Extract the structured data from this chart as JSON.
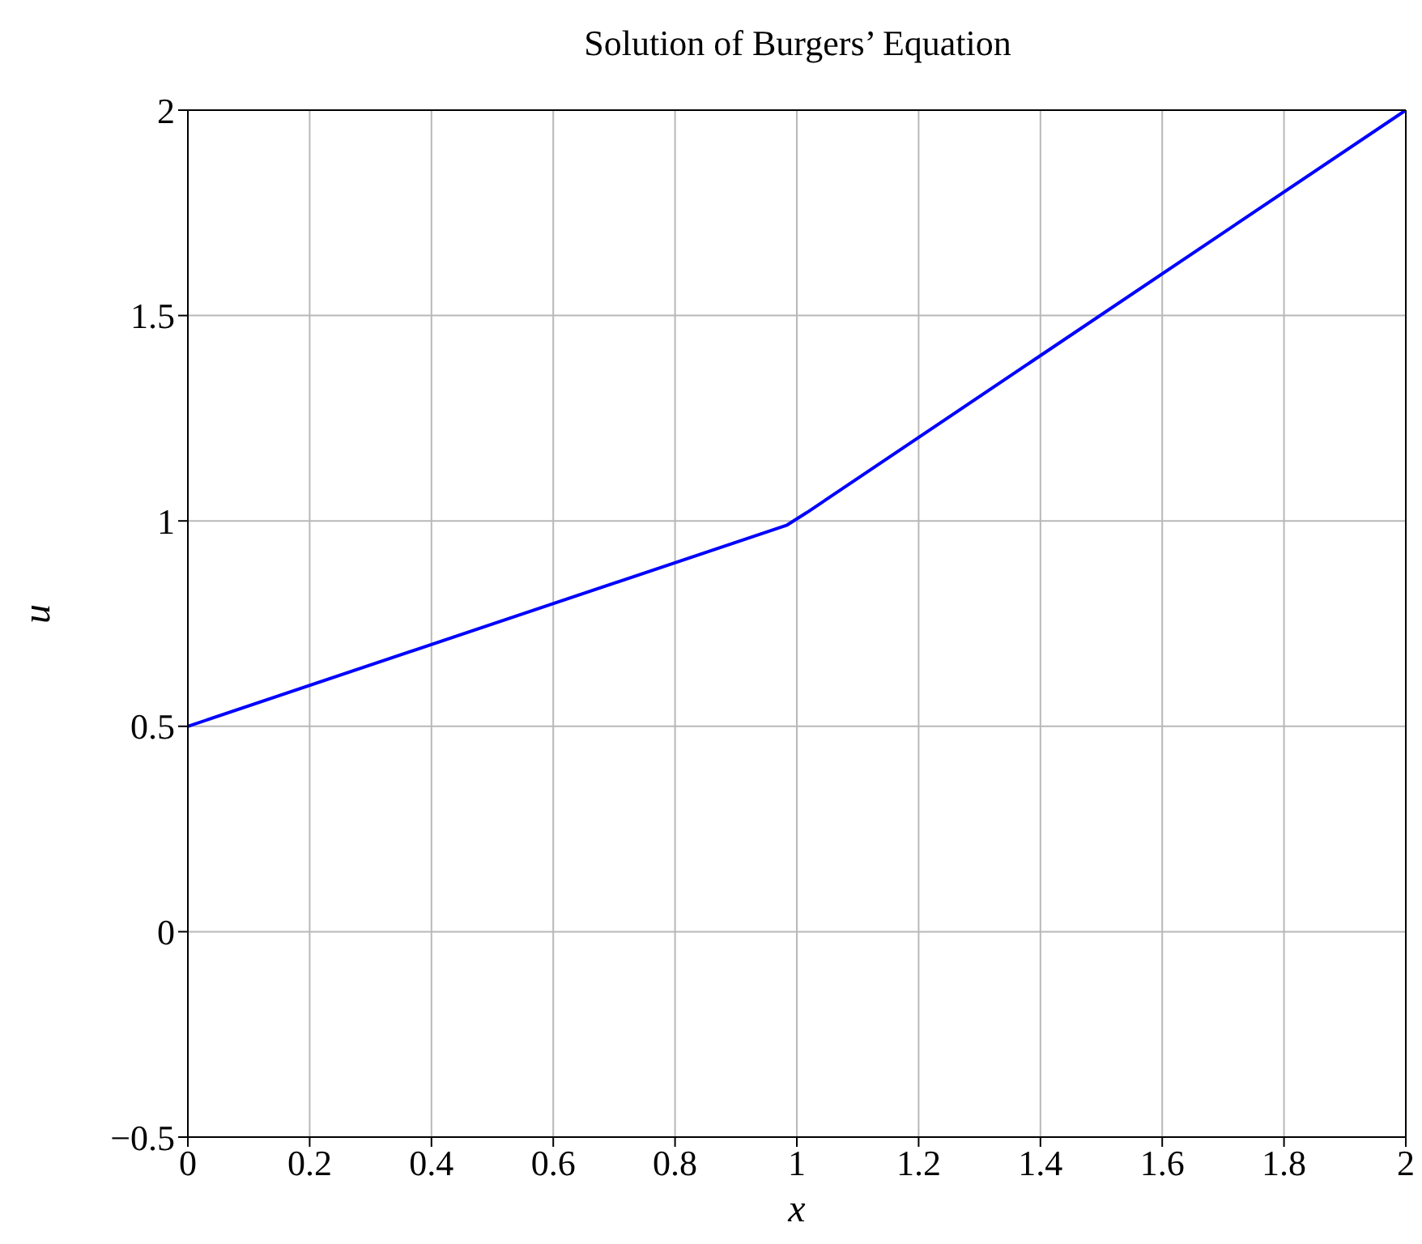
{
  "chart_data": {
    "type": "line",
    "title": "Solution of Burgers’ Equation",
    "xlabel": "x",
    "ylabel": "u",
    "x": [
      0,
      0.984,
      1.016,
      2
    ],
    "series": [
      {
        "color": "#0000ff",
        "values": [
          0.5,
          0.99,
          1.02,
          2
        ]
      }
    ],
    "xlim": [
      0,
      2
    ],
    "xticks": [
      0,
      0.2,
      0.4,
      0.6,
      0.8,
      1,
      1.2,
      1.4,
      1.6,
      1.8,
      2
    ],
    "ylim": [
      -0.5,
      2
    ],
    "yticks": [
      -0.5,
      0,
      0.5,
      1,
      1.5,
      2
    ],
    "grid": true,
    "marker": "none",
    "line_style": "solid"
  }
}
